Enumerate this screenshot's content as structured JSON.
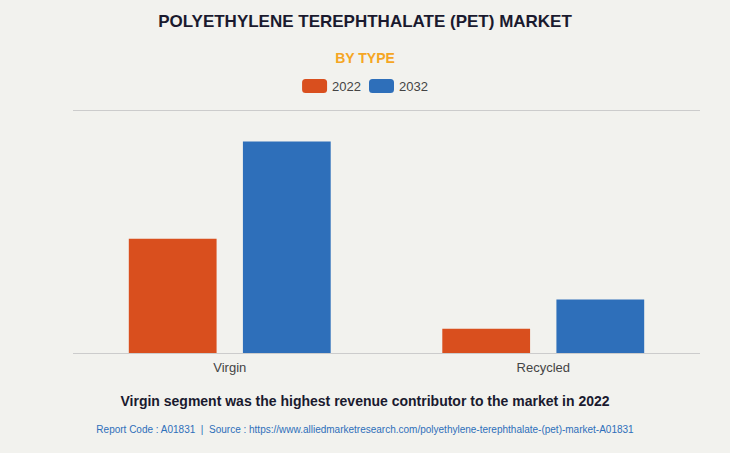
{
  "chart_data": {
    "type": "bar",
    "title": "POLYETHYLENE TEREPHTHALATE (PET) MARKET",
    "subtitle": "BY TYPE",
    "categories": [
      "Virgin",
      "Recycled"
    ],
    "series": [
      {
        "name": "2022",
        "color": "#d94f1e",
        "values": [
          47,
          10
        ]
      },
      {
        "name": "2032",
        "color": "#2e6fba",
        "values": [
          87,
          22
        ]
      }
    ],
    "ylim": [
      0,
      100
    ],
    "yticks": [
      0,
      100
    ],
    "grid": true,
    "legend": "top",
    "tick_labels": "x",
    "annotations": [
      "Virgin segment was the highest revenue contributor to the market in 2022",
      "Report Code : A01831  |  Source : https://www.alliedmarketresearch.com/polyethylene-terephthalate-(pet)-market-A01831"
    ]
  }
}
